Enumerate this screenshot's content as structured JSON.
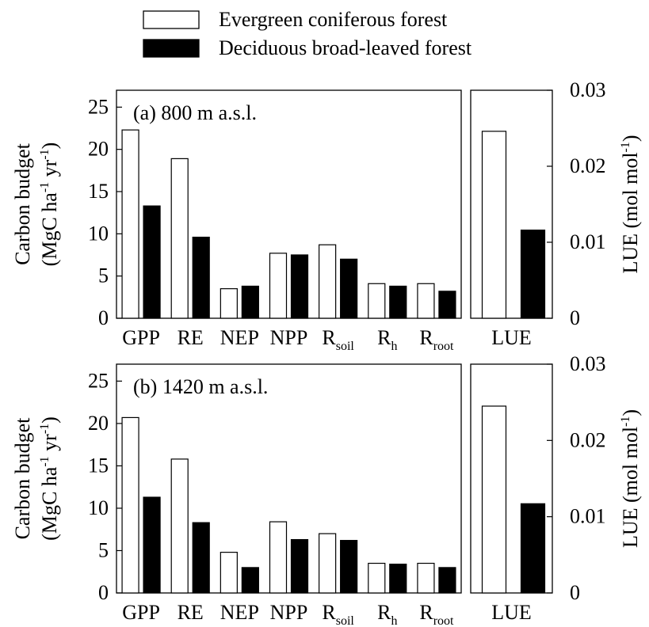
{
  "legend": {
    "items": [
      {
        "label": "Evergreen coniferous forest",
        "fill": "#ffffff"
      },
      {
        "label": "Deciduous broad-leaved forest",
        "fill": "#000000"
      }
    ]
  },
  "left_axis": {
    "label_line1": "Carbon budget",
    "label_line2_parts": [
      "(MgC ha",
      "-1",
      " yr",
      "-1",
      ")"
    ]
  },
  "right_axis": {
    "label_parts": [
      "LUE (mol mol",
      "-1",
      ")"
    ]
  },
  "categories": [
    {
      "base": "GPP",
      "sub": ""
    },
    {
      "base": "RE",
      "sub": ""
    },
    {
      "base": "NEP",
      "sub": ""
    },
    {
      "base": "NPP",
      "sub": ""
    },
    {
      "base": "R",
      "sub": "soil"
    },
    {
      "base": "R",
      "sub": "h"
    },
    {
      "base": "R",
      "sub": "root"
    }
  ],
  "lue_category": "LUE",
  "chart_data": [
    {
      "type": "bar",
      "panel_label": "(a) 800 m a.s.l.",
      "categories": [
        "GPP",
        "RE",
        "NEP",
        "NPP",
        "Rsoil",
        "Rh",
        "Rroot"
      ],
      "ylabel": "Carbon budget (MgC ha-1 yr-1)",
      "ylim": [
        0,
        27
      ],
      "yticks": [
        0,
        5,
        10,
        15,
        20,
        25
      ],
      "series": [
        {
          "name": "Evergreen coniferous forest",
          "color": "#ffffff",
          "values": [
            22.3,
            18.9,
            3.5,
            7.7,
            8.7,
            4.1,
            4.1
          ]
        },
        {
          "name": "Deciduous broad-leaved forest",
          "color": "#000000",
          "values": [
            13.3,
            9.6,
            3.8,
            7.5,
            7.0,
            3.8,
            3.2
          ]
        }
      ],
      "lue": {
        "categories": [
          "LUE"
        ],
        "ylabel": "LUE (mol mol-1)",
        "ylim": [
          0,
          0.03
        ],
        "yticks": [
          0,
          0.01,
          0.02,
          0.03
        ],
        "ytick_labels": [
          "0",
          "0.01",
          "0.02",
          "0.03"
        ],
        "values": [
          0.0246,
          0.0116
        ]
      }
    },
    {
      "type": "bar",
      "panel_label": "(b) 1420 m a.s.l.",
      "categories": [
        "GPP",
        "RE",
        "NEP",
        "NPP",
        "Rsoil",
        "Rh",
        "Rroot"
      ],
      "ylabel": "Carbon budget (MgC ha-1 yr-1)",
      "ylim": [
        0,
        27
      ],
      "yticks": [
        0,
        5,
        10,
        15,
        20,
        25
      ],
      "series": [
        {
          "name": "Evergreen coniferous forest",
          "color": "#ffffff",
          "values": [
            20.7,
            15.8,
            4.8,
            8.4,
            7.0,
            3.5,
            3.5
          ]
        },
        {
          "name": "Deciduous broad-leaved forest",
          "color": "#000000",
          "values": [
            11.3,
            8.3,
            3.0,
            6.3,
            6.2,
            3.4,
            3.0
          ]
        }
      ],
      "lue": {
        "categories": [
          "LUE"
        ],
        "ylabel": "LUE (mol mol-1)",
        "ylim": [
          0,
          0.03
        ],
        "yticks": [
          0,
          0.01,
          0.02,
          0.03
        ],
        "ytick_labels": [
          "0",
          "0.01",
          "0.02",
          "0.03"
        ],
        "values": [
          0.0245,
          0.0117
        ]
      }
    }
  ]
}
